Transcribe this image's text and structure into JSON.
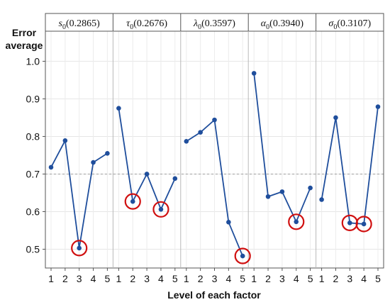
{
  "chart_data": {
    "type": "line",
    "ylabel_line1": "Error",
    "ylabel_line2": "average",
    "xlabel": "Level of each factor",
    "ylim": [
      0.45,
      1.08
    ],
    "yticks": [
      0.5,
      0.6,
      0.7,
      0.8,
      0.9,
      1.0
    ],
    "yticklabels": [
      "0.5",
      "0.6",
      "0.7",
      "0.8",
      "0.9",
      "1.0"
    ],
    "reference_line": 0.7,
    "x_levels": [
      "1",
      "2",
      "3",
      "4",
      "5"
    ],
    "line_color": "#1f4e9c",
    "highlight_color": "#d01010",
    "panels": [
      {
        "symbol": "s",
        "subscript": "0",
        "value_text": "(0.2865)",
        "values": [
          0.718,
          0.789,
          0.503,
          0.731,
          0.755
        ],
        "highlight": [
          3
        ]
      },
      {
        "symbol": "τ",
        "subscript": "0",
        "value_text": "(0.2676)",
        "values": [
          0.875,
          0.627,
          0.7,
          0.606,
          0.688
        ],
        "highlight": [
          2,
          4
        ]
      },
      {
        "symbol": "λ",
        "subscript": "0",
        "value_text": "(0.3597)",
        "values": [
          0.787,
          0.811,
          0.844,
          0.572,
          0.482
        ],
        "highlight": [
          5
        ]
      },
      {
        "symbol": "α",
        "subscript": "0",
        "value_text": "(0.3940)",
        "values": [
          0.968,
          0.64,
          0.653,
          0.573,
          0.663
        ],
        "highlight": [
          4
        ]
      },
      {
        "symbol": "σ",
        "subscript": "0",
        "value_text": "(0.3107)",
        "values": [
          0.632,
          0.85,
          0.57,
          0.567,
          0.879
        ],
        "highlight": [
          3,
          4
        ]
      }
    ]
  }
}
